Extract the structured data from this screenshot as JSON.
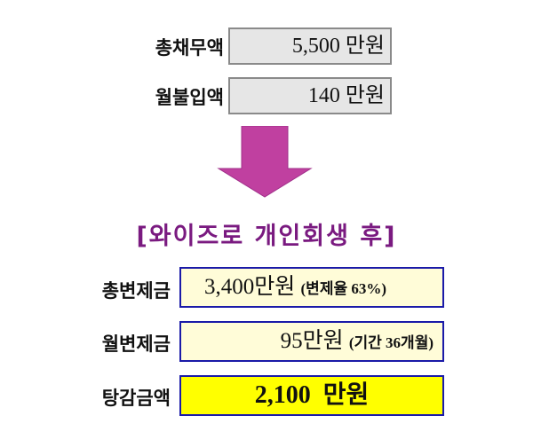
{
  "before": {
    "total_debt": {
      "label": "총채무액",
      "value": "5,500 만원"
    },
    "monthly_payment": {
      "label": "월불입액",
      "value": "140 만원"
    }
  },
  "arrow": {
    "icon": "down-arrow-icon",
    "color": "#c040a0"
  },
  "title": "[와이즈로 개인회생 후]",
  "after": {
    "total_repayment": {
      "label": "총변제금",
      "value": "3,400만원",
      "note": "(변제율  63%)"
    },
    "monthly_repayment": {
      "label": "월변제금",
      "value": "95만원",
      "note": "(기간  36개월)"
    },
    "reduction": {
      "label": "탕감금액",
      "value": "2,100  만원"
    }
  },
  "colors": {
    "gray_box": "#e6e6e6",
    "yellow_box": "#fffcd8",
    "highlight": "#ffff00",
    "border_blue": "#1a1aa8",
    "title": "#7a1a80"
  }
}
